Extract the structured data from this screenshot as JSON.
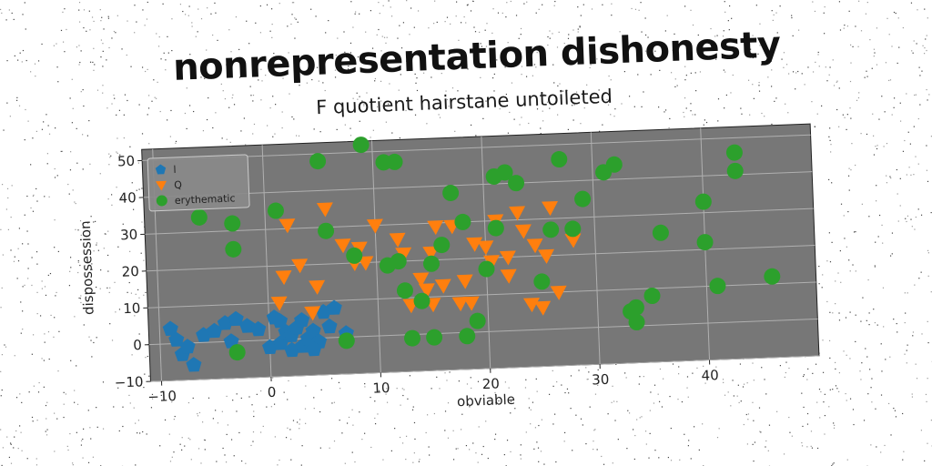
{
  "title": "nonrepresentation dishonesty",
  "chart_data": {
    "type": "scatter",
    "title": "F quotient hairstane untoileted",
    "xlabel": "obviable",
    "ylabel": "dispossession",
    "xlim": [
      -11,
      50
    ],
    "ylim": [
      -10,
      53
    ],
    "xticks": [
      -10,
      0,
      10,
      20,
      30,
      40
    ],
    "yticks": [
      -10,
      0,
      10,
      20,
      30,
      40,
      50
    ],
    "grid": true,
    "legend": "top-left",
    "series": [
      {
        "name": "l",
        "color": "#1f77b4",
        "marker": "pentagon",
        "points": [
          [
            -9,
            4
          ],
          [
            -8.5,
            1
          ],
          [
            -8,
            -3
          ],
          [
            -7,
            -6
          ],
          [
            -6,
            2
          ],
          [
            -5,
            3
          ],
          [
            -4,
            5
          ],
          [
            -3,
            6
          ],
          [
            -2,
            4
          ],
          [
            -1,
            3
          ],
          [
            0,
            -2
          ],
          [
            0.5,
            6
          ],
          [
            1,
            -1
          ],
          [
            1.5,
            2
          ],
          [
            2,
            -3
          ],
          [
            2,
            1
          ],
          [
            2.5,
            3
          ],
          [
            3,
            -2
          ],
          [
            3,
            5
          ],
          [
            3.5,
            0
          ],
          [
            4,
            2
          ],
          [
            4.5,
            -1
          ],
          [
            5,
            7
          ],
          [
            5.5,
            3
          ],
          [
            6,
            8
          ],
          [
            7,
            1
          ],
          [
            -7.5,
            -1
          ],
          [
            -3.5,
            0
          ],
          [
            1,
            5
          ],
          [
            4,
            -3
          ]
        ]
      },
      {
        "name": "Q",
        "color": "#ff7f0e",
        "marker": "triangle-down",
        "points": [
          [
            1,
            10
          ],
          [
            1.5,
            17
          ],
          [
            2,
            31
          ],
          [
            3,
            20
          ],
          [
            4,
            7
          ],
          [
            4.5,
            14
          ],
          [
            5.5,
            35
          ],
          [
            7,
            25
          ],
          [
            8,
            20
          ],
          [
            8.5,
            24
          ],
          [
            9,
            20
          ],
          [
            10,
            30
          ],
          [
            12,
            26
          ],
          [
            12.5,
            22
          ],
          [
            13,
            8
          ],
          [
            14,
            15
          ],
          [
            14.5,
            12
          ],
          [
            15,
            8
          ],
          [
            15.5,
            29
          ],
          [
            16,
            13
          ],
          [
            17,
            29
          ],
          [
            17.5,
            8
          ],
          [
            18,
            14
          ],
          [
            18.5,
            8
          ],
          [
            19,
            24
          ],
          [
            20,
            23
          ],
          [
            20.5,
            19
          ],
          [
            21,
            30
          ],
          [
            22,
            15
          ],
          [
            23,
            32
          ],
          [
            23.5,
            27
          ],
          [
            24,
            7
          ],
          [
            24.5,
            23
          ],
          [
            25,
            6
          ],
          [
            25.5,
            20
          ],
          [
            26,
            33
          ],
          [
            26.5,
            10
          ],
          [
            28,
            24
          ],
          [
            15,
            22
          ],
          [
            22,
            20
          ]
        ]
      },
      {
        "name": "erythematic",
        "color": "#2ca02c",
        "marker": "circle",
        "points": [
          [
            -6,
            34
          ],
          [
            -3,
            32
          ],
          [
            -3,
            25
          ],
          [
            -3,
            -3
          ],
          [
            1,
            35
          ],
          [
            5,
            48
          ],
          [
            5.5,
            29
          ],
          [
            7,
            -1
          ],
          [
            8,
            22
          ],
          [
            9,
            52
          ],
          [
            11,
            47
          ],
          [
            12,
            47
          ],
          [
            11,
            19
          ],
          [
            12,
            20
          ],
          [
            12.5,
            12
          ],
          [
            13,
            -1
          ],
          [
            14,
            9
          ],
          [
            15,
            -1
          ],
          [
            15,
            19
          ],
          [
            16,
            24
          ],
          [
            17,
            38
          ],
          [
            18,
            30
          ],
          [
            18,
            -1
          ],
          [
            19,
            3
          ],
          [
            20,
            17
          ],
          [
            21,
            28
          ],
          [
            21,
            42
          ],
          [
            22,
            43
          ],
          [
            23,
            40
          ],
          [
            25,
            13
          ],
          [
            26,
            27
          ],
          [
            27,
            46
          ],
          [
            28,
            27
          ],
          [
            29,
            35
          ],
          [
            31,
            42
          ],
          [
            32,
            44
          ],
          [
            33,
            4
          ],
          [
            33.5,
            5
          ],
          [
            33.5,
            1
          ],
          [
            35,
            8
          ],
          [
            36,
            25
          ],
          [
            40,
            33
          ],
          [
            40,
            22
          ],
          [
            41,
            10
          ],
          [
            43,
            46
          ],
          [
            43,
            41
          ],
          [
            46,
            12
          ]
        ]
      }
    ]
  }
}
